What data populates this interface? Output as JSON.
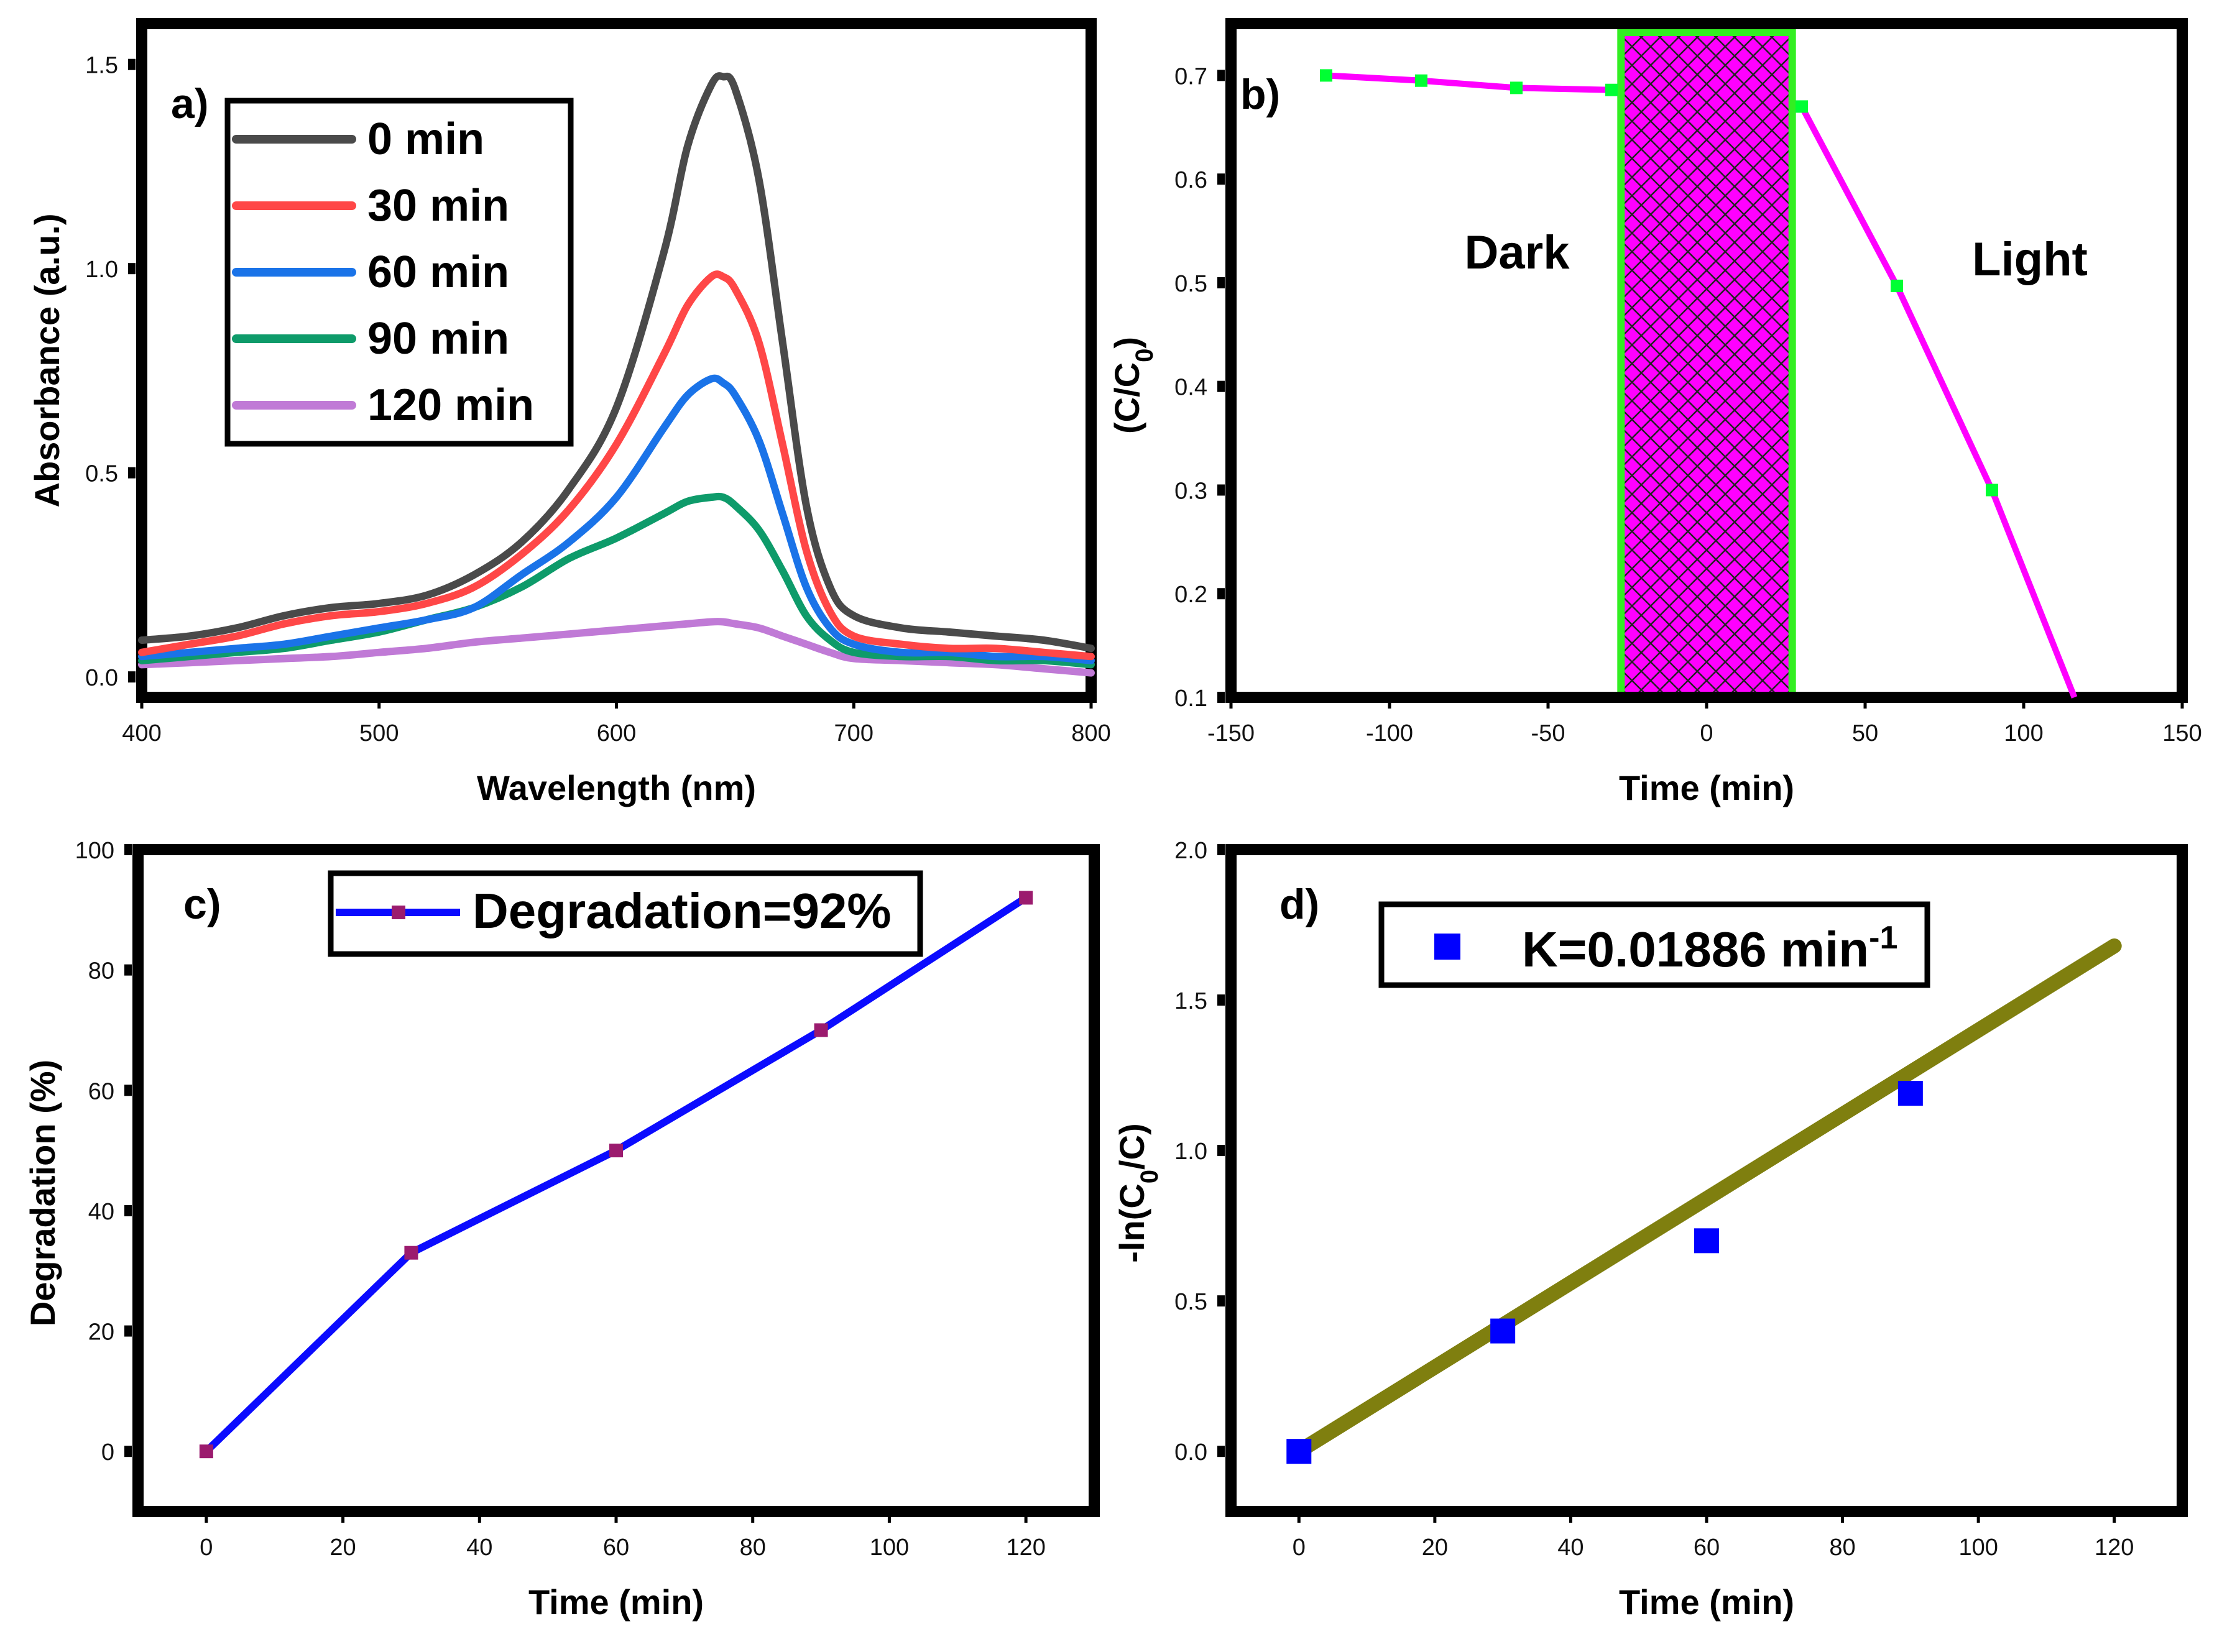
{
  "chart_data": [
    {
      "panel": "a)",
      "type": "line",
      "xlabel": "Wavelength (nm)",
      "ylabel": "Absorbance (a.u.)",
      "xlim": [
        400,
        800
      ],
      "ylim": [
        -0.05,
        1.6
      ],
      "xticks": [
        "400",
        "500",
        "600",
        "700",
        "800"
      ],
      "yticks": [
        "0.0",
        "0.5",
        "1.0",
        "1.5"
      ],
      "x": [
        400,
        420,
        440,
        460,
        480,
        500,
        520,
        540,
        560,
        580,
        600,
        620,
        630,
        640,
        645,
        650,
        660,
        670,
        680,
        690,
        700,
        720,
        740,
        760,
        780,
        800
      ],
      "series": [
        {
          "name": "0 min",
          "color": "#4a4a4a",
          "values": [
            0.09,
            0.1,
            0.12,
            0.15,
            0.17,
            0.18,
            0.2,
            0.25,
            0.33,
            0.46,
            0.66,
            1.04,
            1.3,
            1.45,
            1.47,
            1.44,
            1.22,
            0.82,
            0.42,
            0.22,
            0.15,
            0.12,
            0.11,
            0.1,
            0.09,
            0.07
          ]
        },
        {
          "name": "30 min",
          "color": "#ff4747",
          "values": [
            0.06,
            0.08,
            0.1,
            0.13,
            0.15,
            0.16,
            0.18,
            0.22,
            0.3,
            0.41,
            0.57,
            0.79,
            0.91,
            0.98,
            0.98,
            0.95,
            0.82,
            0.57,
            0.31,
            0.16,
            0.1,
            0.08,
            0.07,
            0.07,
            0.06,
            0.05
          ]
        },
        {
          "name": "60 min",
          "color": "#1a73e8",
          "values": [
            0.05,
            0.06,
            0.07,
            0.08,
            0.1,
            0.12,
            0.14,
            0.17,
            0.25,
            0.33,
            0.44,
            0.61,
            0.69,
            0.73,
            0.72,
            0.69,
            0.58,
            0.4,
            0.22,
            0.12,
            0.08,
            0.06,
            0.06,
            0.05,
            0.05,
            0.04
          ]
        },
        {
          "name": "90 min",
          "color": "#0e9b6a",
          "values": [
            0.04,
            0.05,
            0.06,
            0.07,
            0.09,
            0.11,
            0.14,
            0.17,
            0.22,
            0.29,
            0.34,
            0.4,
            0.43,
            0.44,
            0.44,
            0.42,
            0.36,
            0.26,
            0.15,
            0.09,
            0.06,
            0.05,
            0.05,
            0.04,
            0.04,
            0.03
          ]
        },
        {
          "name": "120 min",
          "color": "#c07ad6",
          "values": [
            0.03,
            0.035,
            0.04,
            0.045,
            0.05,
            0.06,
            0.07,
            0.085,
            0.095,
            0.105,
            0.115,
            0.125,
            0.13,
            0.135,
            0.135,
            0.13,
            0.12,
            0.1,
            0.08,
            0.06,
            0.045,
            0.04,
            0.035,
            0.03,
            0.02,
            0.01
          ]
        }
      ]
    },
    {
      "panel": "b)",
      "type": "line",
      "xlabel": "Time (min)",
      "ylabel": "(C/C0)",
      "xlim": [
        -150,
        150
      ],
      "ylim": [
        0.1,
        0.75
      ],
      "xticks": [
        "-150",
        "-100",
        "-50",
        "0",
        "50",
        "100",
        "150"
      ],
      "yticks": [
        "0.1",
        "0.2",
        "0.3",
        "0.4",
        "0.5",
        "0.6",
        "0.7"
      ],
      "shaded_region": [
        -27,
        27
      ],
      "annotations": [
        "Dark",
        "Light"
      ],
      "line_color": "#ff00ff",
      "marker_color": "#00ff33",
      "dark": [
        {
          "x": -120,
          "y": 0.7
        },
        {
          "x": -90,
          "y": 0.695
        },
        {
          "x": -60,
          "y": 0.688
        },
        {
          "x": -30,
          "y": 0.686
        }
      ],
      "light": [
        {
          "x": 30,
          "y": 0.67
        },
        {
          "x": 60,
          "y": 0.497
        },
        {
          "x": 90,
          "y": 0.3
        },
        {
          "x": 116,
          "y": 0.1
        }
      ]
    },
    {
      "panel": "c)",
      "type": "line",
      "xlabel": "Time (min)",
      "ylabel": "Degradation (%)",
      "xlim": [
        -10,
        130
      ],
      "ylim": [
        -10,
        100
      ],
      "xticks": [
        "0",
        "20",
        "40",
        "60",
        "80",
        "100",
        "120"
      ],
      "yticks": [
        "0",
        "20",
        "40",
        "60",
        "80",
        "100"
      ],
      "legend": "Degradation=92%",
      "line_color": "#0b0bff",
      "marker_color": "#9b1b6e",
      "x": [
        0,
        30,
        60,
        90,
        120
      ],
      "values": [
        0,
        33,
        50,
        70,
        92
      ]
    },
    {
      "panel": "d)",
      "type": "scatter",
      "xlabel": "Time (min)",
      "ylabel": "-ln(C0/C)",
      "xlim": [
        -10,
        130
      ],
      "ylim": [
        -0.2,
        2.0
      ],
      "xticks": [
        "0",
        "20",
        "40",
        "60",
        "80",
        "100",
        "120"
      ],
      "yticks": [
        "0.0",
        "0.5",
        "1.0",
        "1.5",
        "2.0"
      ],
      "legend": "K=0.01886 min",
      "legend_superscript": "-1",
      "marker_color": "#0000ff",
      "fit_color": "#7f7f0f",
      "x": [
        0,
        30,
        60,
        90
      ],
      "values": [
        0.0,
        0.4,
        0.7,
        1.19
      ],
      "fit": {
        "x": [
          0,
          120
        ],
        "y": [
          0.0,
          1.68
        ]
      }
    }
  ]
}
